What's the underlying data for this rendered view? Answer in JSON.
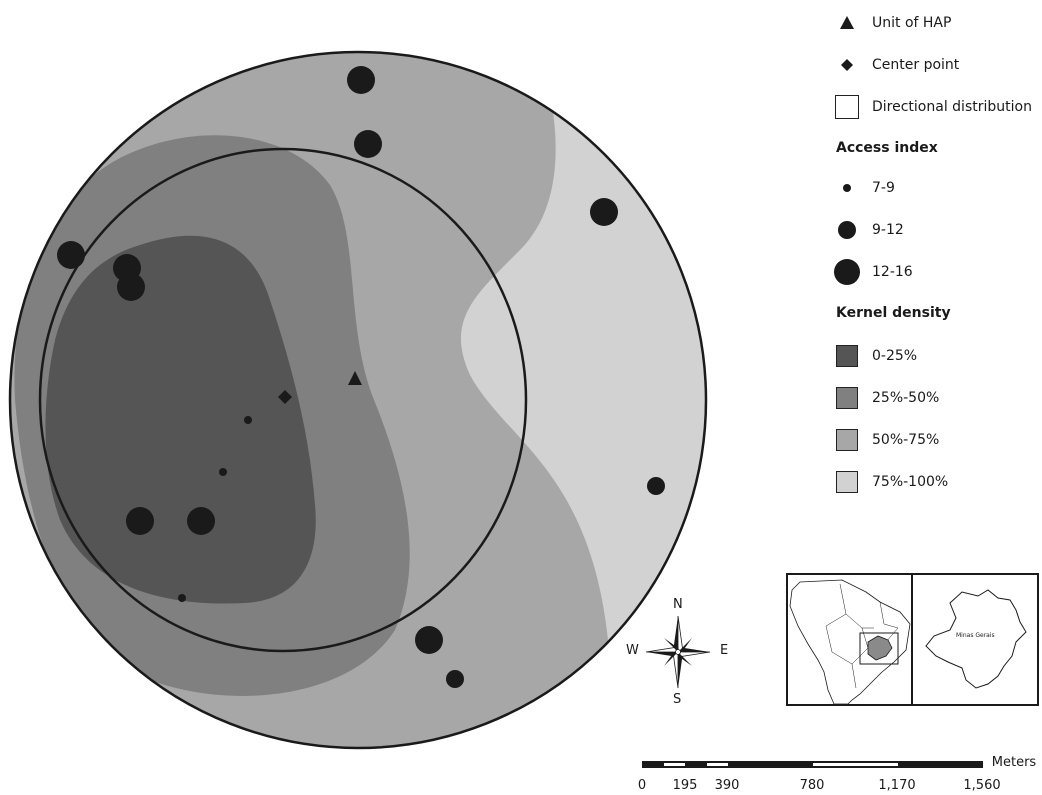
{
  "legend": {
    "unit_label": "Unit of HAP",
    "center_label": "Center point",
    "directional_label": "Directional distribution",
    "access_title": "Access index",
    "access_classes": [
      "7-9",
      "9-12",
      "12-16"
    ],
    "kernel_title": "Kernel density",
    "kernel_classes": [
      {
        "label": "0-25%",
        "color": "#555555"
      },
      {
        "label": "25%-50%",
        "color": "#808080"
      },
      {
        "label": "50%-75%",
        "color": "#a7a7a7"
      },
      {
        "label": "75%-100%",
        "color": "#d2d2d3"
      }
    ]
  },
  "compass": {
    "n": "N",
    "s": "S",
    "e": "E",
    "w": "W"
  },
  "scale": {
    "unit": "Meters",
    "ticks": [
      "0",
      "195",
      "390",
      "780",
      "1,170",
      "1,560"
    ]
  },
  "inset": {
    "region_label": "Minas Gerais"
  },
  "colors": {
    "ink": "#1a1a1a",
    "background": "#ffffff"
  }
}
